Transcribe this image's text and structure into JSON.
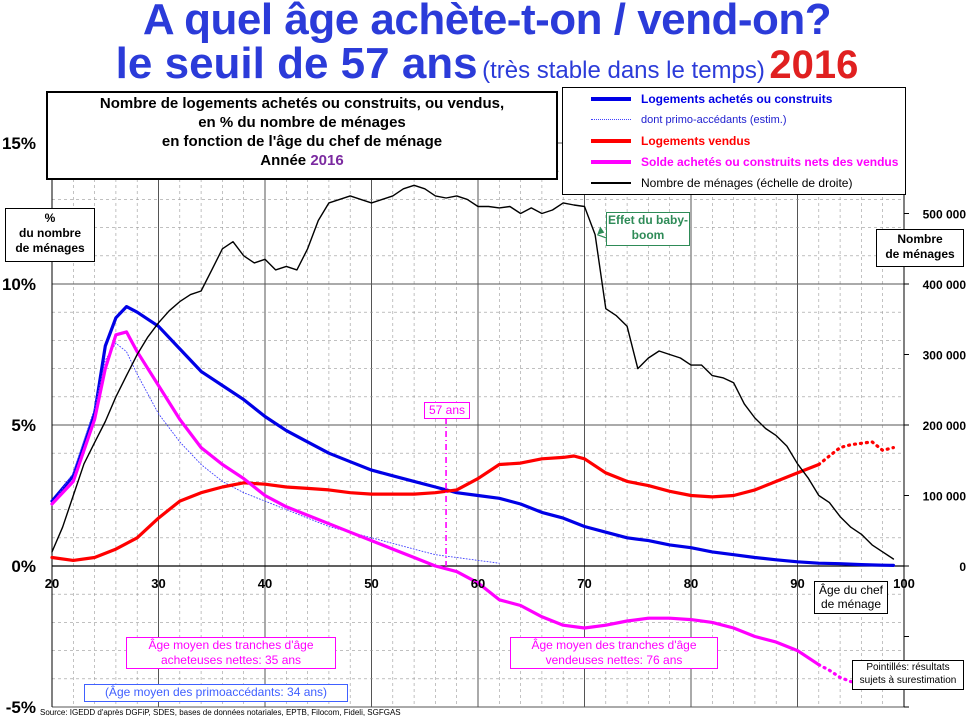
{
  "title_line1": "A quel âge achète-t-on / vend-on?",
  "title_line2_main": "le seuil de 57 ans",
  "title_line2_paren": "(très stable dans le temps)",
  "title_year": "2016",
  "chart_data": {
    "type": "line",
    "title_box": {
      "line1": "Nombre de logements achetés ou construits, ou vendus,",
      "line2": "en % du nombre de ménages",
      "line3": "en fonction de l'âge du chef de ménage",
      "line4_prefix": "Année",
      "line4_year": "2016"
    },
    "left_axis": {
      "label": [
        "%",
        "du nombre",
        "de ménages"
      ],
      "ticks": [
        {
          "v": -5,
          "label": "-5%"
        },
        {
          "v": 0,
          "label": "0%"
        },
        {
          "v": 5,
          "label": "5%"
        },
        {
          "v": 10,
          "label": "10%"
        },
        {
          "v": 15,
          "label": "15%"
        }
      ],
      "range": [
        -5,
        15
      ]
    },
    "right_axis": {
      "label": [
        "Nombre",
        "de ménages"
      ],
      "ticks": [
        {
          "v": 0,
          "label": "0"
        },
        {
          "v": 100000,
          "label": "100 000"
        },
        {
          "v": 200000,
          "label": "200 000"
        },
        {
          "v": 300000,
          "label": "300 000"
        },
        {
          "v": 400000,
          "label": "400 000"
        },
        {
          "v": 500000,
          "label": "500 000"
        }
      ],
      "range": [
        -200000,
        600000
      ]
    },
    "x_axis": {
      "label": [
        "Âge du chef",
        "de ménage"
      ],
      "ticks": [
        20,
        30,
        40,
        50,
        60,
        70,
        80,
        90,
        100
      ],
      "range": [
        20,
        100
      ]
    },
    "grid": true,
    "legend_position": "top-right",
    "series": [
      {
        "name": "Logements achetés ou construits",
        "color": "#0000e6",
        "axis": "left",
        "style": "solid",
        "x": [
          20,
          22,
          24,
          25,
          26,
          27,
          28,
          30,
          32,
          34,
          36,
          38,
          40,
          42,
          44,
          46,
          48,
          50,
          52,
          54,
          56,
          58,
          60,
          62,
          64,
          66,
          68,
          70,
          72,
          74,
          76,
          78,
          80,
          82,
          84,
          86,
          88,
          90,
          92,
          94,
          96,
          98,
          99
        ],
        "y": [
          2.3,
          3.2,
          5.4,
          7.8,
          8.8,
          9.2,
          9.0,
          8.5,
          7.7,
          6.9,
          6.4,
          5.9,
          5.3,
          4.8,
          4.4,
          4.0,
          3.7,
          3.4,
          3.2,
          3.0,
          2.8,
          2.6,
          2.5,
          2.4,
          2.2,
          1.9,
          1.7,
          1.4,
          1.2,
          1.0,
          0.9,
          0.75,
          0.65,
          0.5,
          0.4,
          0.3,
          0.22,
          0.15,
          0.1,
          0.08,
          0.05,
          0.03,
          0.02
        ]
      },
      {
        "name": "dont primo-accédants (estim.)",
        "color": "#4040ff",
        "axis": "left",
        "style": "dotted",
        "x": [
          20,
          22,
          24,
          25,
          26,
          27,
          28,
          30,
          32,
          34,
          36,
          38,
          40,
          42,
          44,
          46,
          48,
          50,
          52,
          54,
          56,
          58,
          60,
          62
        ],
        "y": [
          2.2,
          3.3,
          5.6,
          7.3,
          7.9,
          7.6,
          6.8,
          5.4,
          4.4,
          3.6,
          3.0,
          2.6,
          2.3,
          2.0,
          1.7,
          1.4,
          1.2,
          1.0,
          0.8,
          0.6,
          0.4,
          0.3,
          0.2,
          0.1
        ]
      },
      {
        "name": "Logements vendus",
        "color": "#ff0000",
        "axis": "left",
        "style": "solid",
        "x": [
          20,
          22,
          24,
          26,
          28,
          30,
          32,
          34,
          36,
          38,
          40,
          42,
          44,
          46,
          48,
          50,
          52,
          54,
          56,
          58,
          60,
          62,
          64,
          66,
          68,
          69,
          70,
          72,
          74,
          76,
          78,
          80,
          82,
          84,
          86,
          88,
          90,
          92
        ],
        "y": [
          0.3,
          0.2,
          0.3,
          0.6,
          1.0,
          1.7,
          2.3,
          2.6,
          2.8,
          2.95,
          2.9,
          2.8,
          2.75,
          2.7,
          2.6,
          2.55,
          2.55,
          2.55,
          2.6,
          2.7,
          3.1,
          3.6,
          3.65,
          3.8,
          3.85,
          3.9,
          3.8,
          3.3,
          3.0,
          2.85,
          2.65,
          2.5,
          2.45,
          2.5,
          2.7,
          3.0,
          3.3,
          3.6
        ]
      },
      {
        "name": "Logements vendus (pointillés)",
        "color": "#ff0000",
        "axis": "left",
        "style": "dotted",
        "x": [
          92,
          93,
          94,
          95,
          96,
          97,
          98,
          99
        ],
        "y": [
          3.6,
          3.9,
          4.2,
          4.3,
          4.35,
          4.4,
          4.1,
          4.2
        ]
      },
      {
        "name": "Solde achetés ou construits nets des vendus",
        "color": "#ff00ff",
        "axis": "left",
        "style": "solid",
        "x": [
          20,
          22,
          24,
          25,
          26,
          27,
          28,
          30,
          32,
          34,
          36,
          38,
          40,
          42,
          44,
          46,
          48,
          50,
          52,
          54,
          56,
          58,
          60,
          62,
          64,
          66,
          68,
          70,
          72,
          74,
          76,
          78,
          80,
          82,
          84,
          86,
          88,
          90,
          92
        ],
        "y": [
          2.2,
          3.0,
          5.2,
          7.0,
          8.2,
          8.3,
          7.6,
          6.4,
          5.2,
          4.2,
          3.6,
          3.1,
          2.5,
          2.1,
          1.8,
          1.5,
          1.2,
          0.9,
          0.6,
          0.3,
          0.0,
          -0.2,
          -0.6,
          -1.2,
          -1.4,
          -1.8,
          -2.1,
          -2.2,
          -2.1,
          -1.95,
          -1.85,
          -1.85,
          -1.9,
          -2.0,
          -2.2,
          -2.5,
          -2.7,
          -3.0,
          -3.5
        ]
      },
      {
        "name": "Solde (pointillés)",
        "color": "#ff00ff",
        "axis": "left",
        "style": "dotted",
        "x": [
          92,
          93,
          94,
          95,
          96,
          97,
          98
        ],
        "y": [
          -3.5,
          -3.7,
          -3.95,
          -4.1,
          -4.15,
          -4.2,
          -4.2
        ]
      },
      {
        "name": "Nombre de ménages (échelle de droite)",
        "color": "#000000",
        "axis": "right",
        "style": "solid",
        "x": [
          20,
          21,
          22,
          23,
          24,
          25,
          26,
          27,
          28,
          29,
          30,
          31,
          32,
          33,
          34,
          35,
          36,
          37,
          38,
          39,
          40,
          41,
          42,
          43,
          44,
          45,
          46,
          47,
          48,
          49,
          50,
          51,
          52,
          53,
          54,
          55,
          56,
          57,
          58,
          59,
          60,
          61,
          62,
          63,
          64,
          65,
          66,
          67,
          68,
          69,
          70,
          71,
          72,
          73,
          74,
          75,
          76,
          77,
          78,
          79,
          80,
          81,
          82,
          83,
          84,
          85,
          86,
          87,
          88,
          89,
          90,
          91,
          92,
          93,
          94,
          95,
          96,
          97,
          98,
          99
        ],
        "y": [
          20000,
          55000,
          100000,
          145000,
          175000,
          205000,
          240000,
          270000,
          300000,
          325000,
          345000,
          362000,
          375000,
          385000,
          390000,
          420000,
          450000,
          460000,
          440000,
          430000,
          435000,
          420000,
          425000,
          420000,
          450000,
          490000,
          515000,
          520000,
          525000,
          520000,
          515000,
          520000,
          525000,
          535000,
          540000,
          535000,
          525000,
          522000,
          525000,
          520000,
          510000,
          510000,
          508000,
          510000,
          500000,
          508000,
          500000,
          505000,
          515000,
          512000,
          510000,
          470000,
          365000,
          355000,
          340000,
          280000,
          295000,
          305000,
          300000,
          295000,
          285000,
          285000,
          270000,
          267000,
          260000,
          230000,
          210000,
          195000,
          185000,
          170000,
          145000,
          125000,
          100000,
          90000,
          70000,
          55000,
          45000,
          30000,
          20000,
          10000
        ]
      }
    ],
    "legend": [
      {
        "label": "Logements achetés ou construits",
        "color": "#0000e6",
        "style": "solid"
      },
      {
        "label": "dont primo-accédants (estim.)",
        "color": "#4040ff",
        "style": "dotted"
      },
      {
        "label": "Logements vendus",
        "color": "#ff0000",
        "style": "solid"
      },
      {
        "label": "Solde achetés ou construits nets des vendus",
        "color": "#ff00ff",
        "style": "solid"
      },
      {
        "label": "Nombre de ménages (échelle de droite)",
        "color": "#000000",
        "style": "solid"
      }
    ],
    "annotations": {
      "babyboom": "Effet du baby-boom",
      "age57": "57 ans",
      "buyers": [
        "Âge moyen des tranches d'âge",
        "acheteuses nettes: 35 ans"
      ],
      "sellers": [
        "Âge moyen des tranches d'âge",
        "vendeuses nettes: 76 ans"
      ],
      "primo": "(Âge moyen des primoaccédants: 34 ans)",
      "dotted_note": [
        "Pointillés: résultats",
        "sujets à surestimation"
      ],
      "source": "Source: IGEDD d'après DGFiP, SDES, bases de données notariales, EPTB, Filocom, Fideli, SGFGAS"
    }
  }
}
